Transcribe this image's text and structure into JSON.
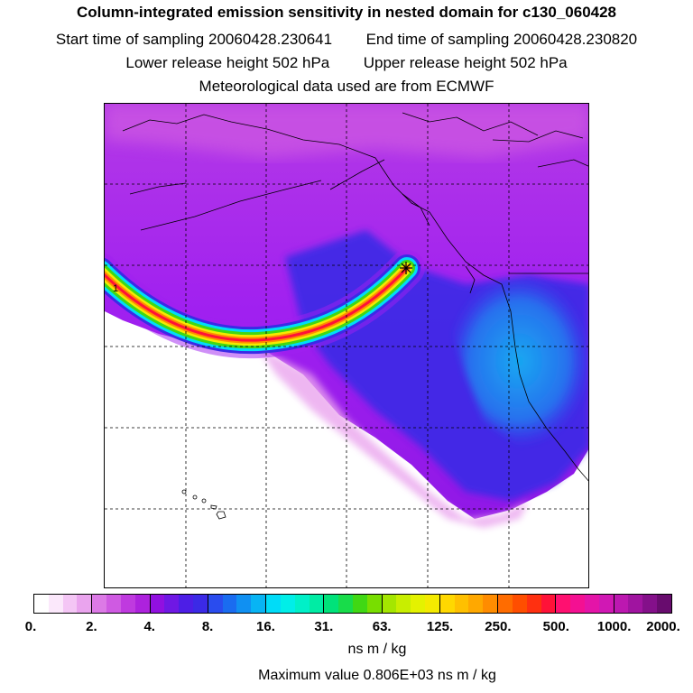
{
  "title": "Column-integrated emission sensitivity in nested domain for c130_060428",
  "sampling": {
    "start_label": "Start time of sampling",
    "start_value": "20060428.230641",
    "end_label": "End time of sampling",
    "end_value": "20060428.230820"
  },
  "release": {
    "lower_label": "Lower release height",
    "lower_value": "502 hPa",
    "upper_label": "Upper release height",
    "upper_value": "502 hPa"
  },
  "meteo_line": "Meteorological data used are from ECMWF",
  "map": {
    "marker_label": "1"
  },
  "colorbar": {
    "ticks": [
      "0.",
      "2.",
      "4.",
      "8.",
      "16.",
      "31.",
      "63.",
      "125.",
      "250.",
      "500.",
      "1000.",
      "2000."
    ],
    "bin_colors": [
      [
        "#ffffff",
        "#fbe8fb",
        "#f4c6f5",
        "#eaa4ee"
      ],
      [
        "#dc7ae6",
        "#cf5ae2",
        "#bf3adf",
        "#ad22dd"
      ],
      [
        "#9110e0",
        "#6f18e4",
        "#4d1ee6",
        "#3b2ae6"
      ],
      [
        "#2a4cee",
        "#1a6cf0",
        "#1090f2",
        "#08b4f4"
      ],
      [
        "#00dcf8",
        "#00eee8",
        "#00f0c8",
        "#00eca4"
      ],
      [
        "#00e27a",
        "#18dc4a",
        "#40d814",
        "#78de00"
      ],
      [
        "#a4e600",
        "#c8ee00",
        "#e4f200",
        "#f4ea00"
      ],
      [
        "#ffd800",
        "#ffc000",
        "#ffa800",
        "#ff8c00"
      ],
      [
        "#ff6c00",
        "#ff4e00",
        "#ff3010",
        "#ff1238"
      ],
      [
        "#ff1070",
        "#f41092",
        "#e414a8",
        "#d018b4"
      ],
      [
        "#bc18b0",
        "#a014a0",
        "#84108a",
        "#680c6e"
      ]
    ],
    "units": "ns m / kg"
  },
  "max_value_label": "Maximum value  0.806E+03 ns m / kg",
  "colors": {
    "field_purple": "#a020f0",
    "field_blue": "#3a2ae0",
    "field_cyan": "#1aa0f2",
    "plume_red": "#ff2020",
    "plume_yellow": "#f0e800",
    "plume_green": "#00e080"
  }
}
